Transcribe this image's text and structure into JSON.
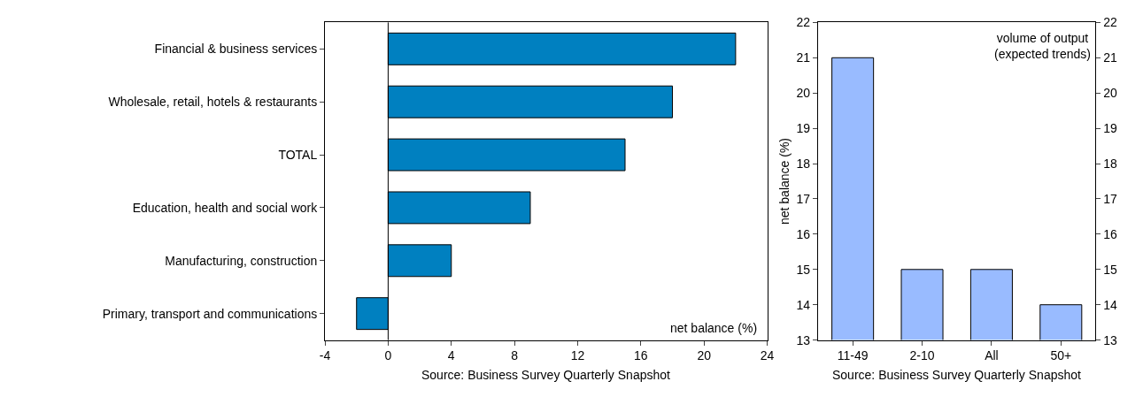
{
  "chart_data": [
    {
      "type": "bar",
      "orientation": "horizontal",
      "categories": [
        "Financial & business services",
        "Wholesale, retail, hotels & restaurants",
        "TOTAL",
        "Education, health and social work",
        "Manufacturing, construction",
        "Primary, transport and communications"
      ],
      "values": [
        22,
        18,
        15,
        9,
        4,
        -2
      ],
      "color": "#0080c0",
      "xlim": [
        -4,
        24
      ],
      "xticks": [
        -4,
        0,
        4,
        8,
        12,
        16,
        20,
        24
      ],
      "xlabel": "net balance (%)",
      "ref_lines": [
        {
          "axis": "x",
          "value": 0
        }
      ],
      "annotations": [
        "Source: Business Survey Quarterly Snapshot"
      ]
    },
    {
      "type": "bar",
      "categories": [
        "11-49",
        "2-10",
        "All",
        "50+"
      ],
      "values": [
        21,
        15,
        15,
        14
      ],
      "color": "#99bbff",
      "ylim": [
        13,
        22
      ],
      "yticks": [
        13,
        14,
        15,
        16,
        17,
        18,
        19,
        20,
        21,
        22
      ],
      "y2lim": [
        13,
        22
      ],
      "y2ticks": [
        13,
        14,
        15,
        16,
        17,
        18,
        19,
        20,
        21,
        22
      ],
      "ylabel": "net balance (%)",
      "annotations": [
        "volume of output\n(expected trends)",
        "Source: Business Survey Quarterly Snapshot"
      ]
    }
  ]
}
